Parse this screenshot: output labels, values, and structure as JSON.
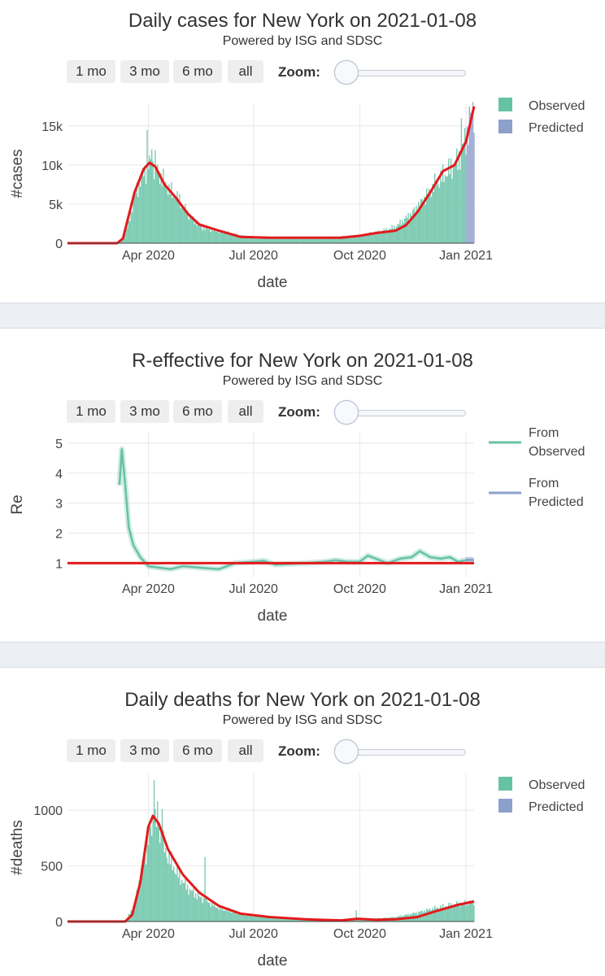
{
  "controls": {
    "buttons": [
      "1 mo",
      "3 mo",
      "6 mo",
      "all"
    ],
    "zoom_label": "Zoom:"
  },
  "colors": {
    "observed": "#66c2a5",
    "predicted": "#8da0cb",
    "fit_line": "#e31a1c",
    "grid": "#e8e8e8"
  },
  "chart_data": [
    {
      "type": "bar",
      "title": "Daily cases for New York on 2021-01-08",
      "subtitle": "Powered by ISG and SDSC",
      "xlabel": "date",
      "ylabel": "#cases",
      "x_ticks": [
        "Apr 2020",
        "Jul 2020",
        "Oct 2020",
        "Jan 2021"
      ],
      "y_ticks": [
        "0",
        "5k",
        "10k",
        "15k"
      ],
      "y_tick_values": [
        0,
        5000,
        10000,
        15000
      ],
      "ylim": [
        0,
        17800
      ],
      "legend": [
        "Observed",
        "Predicted"
      ],
      "legend_position": "top-right",
      "observed_profile": [
        [
          "2020-01-22",
          0
        ],
        [
          "2020-03-03",
          0
        ],
        [
          "2020-03-10",
          400
        ],
        [
          "2020-03-15",
          2500
        ],
        [
          "2020-03-20",
          6000
        ],
        [
          "2020-03-26",
          8500
        ],
        [
          "2020-04-01",
          10000
        ],
        [
          "2020-04-04",
          10300
        ],
        [
          "2020-04-10",
          9000
        ],
        [
          "2020-04-18",
          7000
        ],
        [
          "2020-04-28",
          5500
        ],
        [
          "2020-05-07",
          3400
        ],
        [
          "2020-05-18",
          2000
        ],
        [
          "2020-06-01",
          1500
        ],
        [
          "2020-06-15",
          1100
        ],
        [
          "2020-07-01",
          700
        ],
        [
          "2020-08-01",
          680
        ],
        [
          "2020-09-01",
          620
        ],
        [
          "2020-10-01",
          1000
        ],
        [
          "2020-10-20",
          1500
        ],
        [
          "2020-11-01",
          2100
        ],
        [
          "2020-11-15",
          3800
        ],
        [
          "2020-11-25",
          5500
        ],
        [
          "2020-12-05",
          7500
        ],
        [
          "2020-12-15",
          9000
        ],
        [
          "2020-12-25",
          10500
        ],
        [
          "2021-01-01",
          13500
        ],
        [
          "2021-01-05",
          15000
        ],
        [
          "2021-01-08",
          15500
        ]
      ],
      "predicted_profile": [
        [
          "2021-01-01",
          13500
        ],
        [
          "2021-01-08",
          17500
        ]
      ],
      "spikes": [
        [
          "2020-03-31",
          14500
        ],
        [
          "2020-04-04",
          12000
        ],
        [
          "2020-04-07",
          11900
        ],
        [
          "2020-12-28",
          16000
        ],
        [
          "2021-01-04",
          17500
        ]
      ],
      "fit_line": [
        [
          "2020-01-22",
          0
        ],
        [
          "2020-03-05",
          0
        ],
        [
          "2020-03-10",
          600
        ],
        [
          "2020-03-20",
          6500
        ],
        [
          "2020-03-28",
          9500
        ],
        [
          "2020-04-02",
          10300
        ],
        [
          "2020-04-07",
          9800
        ],
        [
          "2020-04-15",
          7500
        ],
        [
          "2020-04-25",
          5800
        ],
        [
          "2020-05-05",
          3800
        ],
        [
          "2020-05-15",
          2400
        ],
        [
          "2020-06-01",
          1600
        ],
        [
          "2020-06-20",
          800
        ],
        [
          "2020-07-15",
          700
        ],
        [
          "2020-08-15",
          700
        ],
        [
          "2020-09-15",
          700
        ],
        [
          "2020-10-01",
          950
        ],
        [
          "2020-10-15",
          1300
        ],
        [
          "2020-11-01",
          1600
        ],
        [
          "2020-11-10",
          2300
        ],
        [
          "2020-11-20",
          4000
        ],
        [
          "2020-12-01",
          6500
        ],
        [
          "2020-12-12",
          9200
        ],
        [
          "2020-12-22",
          10000
        ],
        [
          "2021-01-01",
          13000
        ],
        [
          "2021-01-08",
          17500
        ]
      ]
    },
    {
      "type": "line",
      "title": "R-effective for New York on 2021-01-08",
      "subtitle": "Powered by ISG and SDSC",
      "xlabel": "date",
      "ylabel": "Re",
      "x_ticks": [
        "Apr 2020",
        "Jul 2020",
        "Oct 2020",
        "Jan 2021"
      ],
      "y_ticks": [
        "1",
        "2",
        "3",
        "4",
        "5"
      ],
      "y_tick_values": [
        1,
        2,
        3,
        4,
        5
      ],
      "ylim": [
        0.55,
        5.35
      ],
      "legend": [
        "From Observed",
        "From Predicted"
      ],
      "legend_position": "top-right",
      "reference_line": 1,
      "series": [
        {
          "name": "From Observed",
          "points": [
            [
              "2020-03-07",
              3.6
            ],
            [
              "2020-03-09",
              4.8
            ],
            [
              "2020-03-12",
              3.6
            ],
            [
              "2020-03-15",
              2.2
            ],
            [
              "2020-03-19",
              1.6
            ],
            [
              "2020-03-25",
              1.2
            ],
            [
              "2020-04-01",
              0.9
            ],
            [
              "2020-04-10",
              0.85
            ],
            [
              "2020-04-20",
              0.8
            ],
            [
              "2020-05-01",
              0.9
            ],
            [
              "2020-05-15",
              0.85
            ],
            [
              "2020-06-01",
              0.8
            ],
            [
              "2020-06-15",
              1.0
            ],
            [
              "2020-07-01",
              1.05
            ],
            [
              "2020-07-10",
              1.08
            ],
            [
              "2020-07-20",
              0.95
            ],
            [
              "2020-08-15",
              1.0
            ],
            [
              "2020-09-01",
              1.05
            ],
            [
              "2020-09-10",
              1.1
            ],
            [
              "2020-09-20",
              1.05
            ],
            [
              "2020-10-01",
              1.05
            ],
            [
              "2020-10-08",
              1.25
            ],
            [
              "2020-10-15",
              1.15
            ],
            [
              "2020-10-25",
              1.0
            ],
            [
              "2020-11-05",
              1.15
            ],
            [
              "2020-11-15",
              1.2
            ],
            [
              "2020-11-22",
              1.4
            ],
            [
              "2020-12-01",
              1.2
            ],
            [
              "2020-12-10",
              1.15
            ],
            [
              "2020-12-18",
              1.2
            ],
            [
              "2020-12-25",
              1.05
            ],
            [
              "2021-01-01",
              1.1
            ],
            [
              "2021-01-07",
              1.12
            ]
          ]
        },
        {
          "name": "From Predicted",
          "points": [
            [
              "2021-01-01",
              1.12
            ],
            [
              "2021-01-08",
              1.1
            ]
          ]
        }
      ]
    },
    {
      "type": "bar",
      "title": "Daily deaths for New York on 2021-01-08",
      "subtitle": "Powered by ISG and SDSC",
      "xlabel": "date",
      "ylabel": "#deaths",
      "x_ticks": [
        "Apr 2020",
        "Jul 2020",
        "Oct 2020",
        "Jan 2021"
      ],
      "y_ticks": [
        "0",
        "500",
        "1000"
      ],
      "y_tick_values": [
        0,
        500,
        1000
      ],
      "ylim": [
        0,
        1330
      ],
      "legend": [
        "Observed",
        "Predicted"
      ],
      "legend_position": "top-right",
      "observed_profile": [
        [
          "2020-01-22",
          0
        ],
        [
          "2020-03-12",
          0
        ],
        [
          "2020-03-20",
          150
        ],
        [
          "2020-03-28",
          550
        ],
        [
          "2020-04-05",
          900
        ],
        [
          "2020-04-10",
          850
        ],
        [
          "2020-04-15",
          650
        ],
        [
          "2020-04-25",
          450
        ],
        [
          "2020-05-05",
          300
        ],
        [
          "2020-05-15",
          220
        ],
        [
          "2020-06-01",
          120
        ],
        [
          "2020-06-15",
          80
        ],
        [
          "2020-07-01",
          50
        ],
        [
          "2020-08-01",
          25
        ],
        [
          "2020-09-01",
          15
        ],
        [
          "2020-10-01",
          15
        ],
        [
          "2020-11-01",
          40
        ],
        [
          "2020-11-20",
          80
        ],
        [
          "2020-12-05",
          120
        ],
        [
          "2020-12-20",
          150
        ],
        [
          "2021-01-08",
          180
        ]
      ],
      "predicted_profile": [],
      "spikes": [
        [
          "2020-04-06",
          1270
        ],
        [
          "2020-04-09",
          1080
        ],
        [
          "2020-04-13",
          1010
        ],
        [
          "2020-05-20",
          580
        ],
        [
          "2020-09-28",
          100
        ]
      ],
      "fit_line": [
        [
          "2020-01-22",
          0
        ],
        [
          "2020-03-12",
          0
        ],
        [
          "2020-03-18",
          60
        ],
        [
          "2020-03-25",
          350
        ],
        [
          "2020-04-01",
          850
        ],
        [
          "2020-04-05",
          950
        ],
        [
          "2020-04-10",
          880
        ],
        [
          "2020-04-18",
          650
        ],
        [
          "2020-05-01",
          420
        ],
        [
          "2020-05-15",
          260
        ],
        [
          "2020-06-01",
          140
        ],
        [
          "2020-06-20",
          70
        ],
        [
          "2020-07-15",
          40
        ],
        [
          "2020-08-15",
          20
        ],
        [
          "2020-09-15",
          10
        ],
        [
          "2020-09-29",
          25
        ],
        [
          "2020-10-15",
          15
        ],
        [
          "2020-11-01",
          20
        ],
        [
          "2020-11-20",
          40
        ],
        [
          "2020-12-05",
          90
        ],
        [
          "2020-12-25",
          150
        ],
        [
          "2021-01-08",
          180
        ]
      ]
    }
  ]
}
